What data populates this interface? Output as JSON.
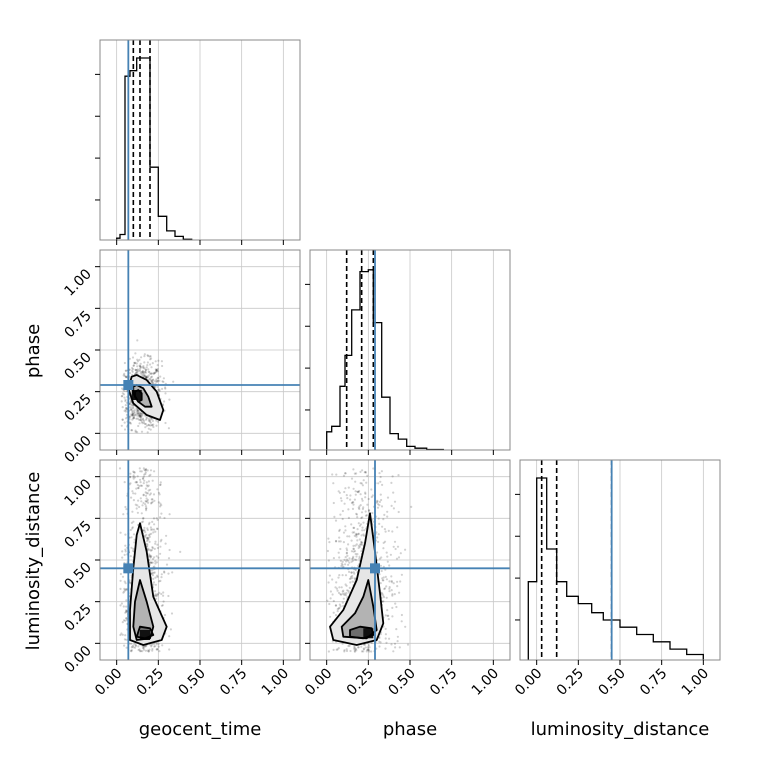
{
  "chart_data": {
    "type": "corner",
    "parameters": [
      "geocent_time",
      "phase",
      "luminosity_distance"
    ],
    "axis_labels": [
      "geocent_time",
      "phase",
      "luminosity_distance"
    ],
    "ticks": [
      0.0,
      0.25,
      0.5,
      0.75,
      1.0
    ],
    "tick_labels": [
      "0.00",
      "0.25",
      "0.50",
      "0.75",
      "1.00"
    ],
    "range": [
      -0.1,
      1.1
    ],
    "grid": true,
    "colors": {
      "truth": "#4682b4",
      "contour": "#000000",
      "quantile": "#000000",
      "scatter": "#000000",
      "frame": "#888888",
      "grid": "#c8c8c8"
    },
    "truths": [
      0.07,
      0.29,
      0.45
    ],
    "quantiles": [
      [
        0.1,
        0.14,
        0.2
      ],
      [
        0.12,
        0.21,
        0.28
      ],
      [
        0.03,
        0.12,
        0.45
      ]
    ],
    "histograms": [
      {
        "parameter": "geocent_time",
        "bins": [
          [
            0.0,
            0.02,
            0.01
          ],
          [
            0.02,
            0.05,
            0.03
          ],
          [
            0.05,
            0.08,
            0.9
          ],
          [
            0.08,
            0.12,
            0.93
          ],
          [
            0.12,
            0.15,
            1.0
          ],
          [
            0.15,
            0.2,
            1.0
          ],
          [
            0.2,
            0.25,
            0.4
          ],
          [
            0.25,
            0.3,
            0.13
          ],
          [
            0.3,
            0.35,
            0.05
          ],
          [
            0.35,
            0.4,
            0.02
          ],
          [
            0.4,
            0.45,
            0.004
          ]
        ]
      },
      {
        "parameter": "phase",
        "bins": [
          [
            0.0,
            0.03,
            0.1
          ],
          [
            0.03,
            0.08,
            0.13
          ],
          [
            0.08,
            0.11,
            0.35
          ],
          [
            0.11,
            0.15,
            0.52
          ],
          [
            0.15,
            0.2,
            0.77
          ],
          [
            0.2,
            0.25,
            0.98
          ],
          [
            0.25,
            0.28,
            0.99
          ],
          [
            0.28,
            0.33,
            0.7
          ],
          [
            0.33,
            0.38,
            0.29
          ],
          [
            0.38,
            0.43,
            0.09
          ],
          [
            0.43,
            0.48,
            0.06
          ],
          [
            0.48,
            0.53,
            0.02
          ],
          [
            0.53,
            0.6,
            0.01
          ],
          [
            0.6,
            0.7,
            0.003
          ]
        ]
      },
      {
        "parameter": "luminosity_distance",
        "bins": [
          [
            -0.05,
            0.0,
            0.43
          ],
          [
            0.0,
            0.06,
            1.0
          ],
          [
            0.06,
            0.12,
            0.61
          ],
          [
            0.12,
            0.18,
            0.43
          ],
          [
            0.18,
            0.25,
            0.35
          ],
          [
            0.25,
            0.33,
            0.31
          ],
          [
            0.33,
            0.4,
            0.26
          ],
          [
            0.4,
            0.5,
            0.22
          ],
          [
            0.5,
            0.6,
            0.18
          ],
          [
            0.6,
            0.7,
            0.14
          ],
          [
            0.7,
            0.8,
            0.1
          ],
          [
            0.8,
            0.9,
            0.06
          ],
          [
            0.9,
            1.0,
            0.03
          ]
        ]
      }
    ],
    "pairs": [
      {
        "x": "geocent_time",
        "y": "phase",
        "scatter_center": [
          0.15,
          0.23
        ],
        "scatter_spread": [
          0.06,
          0.1
        ],
        "scatter_box": [
          0.03,
          0.0,
          0.55,
          0.95
        ],
        "peak": [
          0.12,
          0.23
        ],
        "contours": [
          [
            [
              0.12,
              0.35
            ],
            [
              0.18,
              0.32
            ],
            [
              0.24,
              0.25
            ],
            [
              0.28,
              0.14
            ],
            [
              0.26,
              0.08
            ],
            [
              0.18,
              0.11
            ],
            [
              0.1,
              0.18
            ],
            [
              0.07,
              0.27
            ],
            [
              0.09,
              0.34
            ]
          ],
          [
            [
              0.12,
              0.29
            ],
            [
              0.16,
              0.27
            ],
            [
              0.19,
              0.22
            ],
            [
              0.21,
              0.16
            ],
            [
              0.17,
              0.16
            ],
            [
              0.13,
              0.19
            ],
            [
              0.1,
              0.24
            ],
            [
              0.1,
              0.28
            ]
          ],
          [
            [
              0.13,
              0.26
            ],
            [
              0.15,
              0.24
            ],
            [
              0.15,
              0.2
            ],
            [
              0.13,
              0.19
            ],
            [
              0.11,
              0.22
            ],
            [
              0.11,
              0.25
            ]
          ]
        ]
      },
      {
        "x": "geocent_time",
        "y": "luminosity_distance",
        "scatter_center": [
          0.16,
          0.2
        ],
        "scatter_spread": [
          0.07,
          0.28
        ],
        "scatter_box": [
          0.02,
          -0.05,
          0.5,
          1.05
        ],
        "peak": [
          0.17,
          0.05
        ],
        "contours": [
          [
            [
              0.14,
              0.72
            ],
            [
              0.18,
              0.55
            ],
            [
              0.22,
              0.28
            ],
            [
              0.3,
              0.1
            ],
            [
              0.27,
              0.02
            ],
            [
              0.16,
              -0.01
            ],
            [
              0.08,
              0.02
            ],
            [
              0.08,
              0.2
            ],
            [
              0.1,
              0.45
            ],
            [
              0.12,
              0.65
            ]
          ],
          [
            [
              0.14,
              0.38
            ],
            [
              0.18,
              0.25
            ],
            [
              0.22,
              0.1
            ],
            [
              0.2,
              0.03
            ],
            [
              0.12,
              0.02
            ],
            [
              0.1,
              0.1
            ],
            [
              0.11,
              0.25
            ]
          ],
          [
            [
              0.14,
              0.1
            ],
            [
              0.2,
              0.09
            ],
            [
              0.22,
              0.05
            ],
            [
              0.17,
              0.03
            ],
            [
              0.12,
              0.04
            ]
          ]
        ]
      },
      {
        "x": "phase",
        "y": "luminosity_distance",
        "scatter_center": [
          0.22,
          0.2
        ],
        "scatter_spread": [
          0.1,
          0.28
        ],
        "scatter_box": [
          0.0,
          -0.05,
          0.7,
          1.05
        ],
        "peak": [
          0.25,
          0.06
        ],
        "contours": [
          [
            [
              0.26,
              0.78
            ],
            [
              0.29,
              0.55
            ],
            [
              0.32,
              0.3
            ],
            [
              0.34,
              0.12
            ],
            [
              0.3,
              0.02
            ],
            [
              0.18,
              -0.01
            ],
            [
              0.04,
              0.02
            ],
            [
              0.02,
              0.1
            ],
            [
              0.1,
              0.2
            ],
            [
              0.18,
              0.38
            ],
            [
              0.23,
              0.6
            ]
          ],
          [
            [
              0.25,
              0.38
            ],
            [
              0.28,
              0.22
            ],
            [
              0.3,
              0.08
            ],
            [
              0.24,
              0.03
            ],
            [
              0.1,
              0.04
            ],
            [
              0.09,
              0.1
            ],
            [
              0.17,
              0.18
            ],
            [
              0.22,
              0.28
            ]
          ],
          [
            [
              0.2,
              0.1
            ],
            [
              0.27,
              0.09
            ],
            [
              0.28,
              0.05
            ],
            [
              0.22,
              0.03
            ],
            [
              0.14,
              0.04
            ],
            [
              0.14,
              0.08
            ]
          ]
        ]
      }
    ]
  }
}
